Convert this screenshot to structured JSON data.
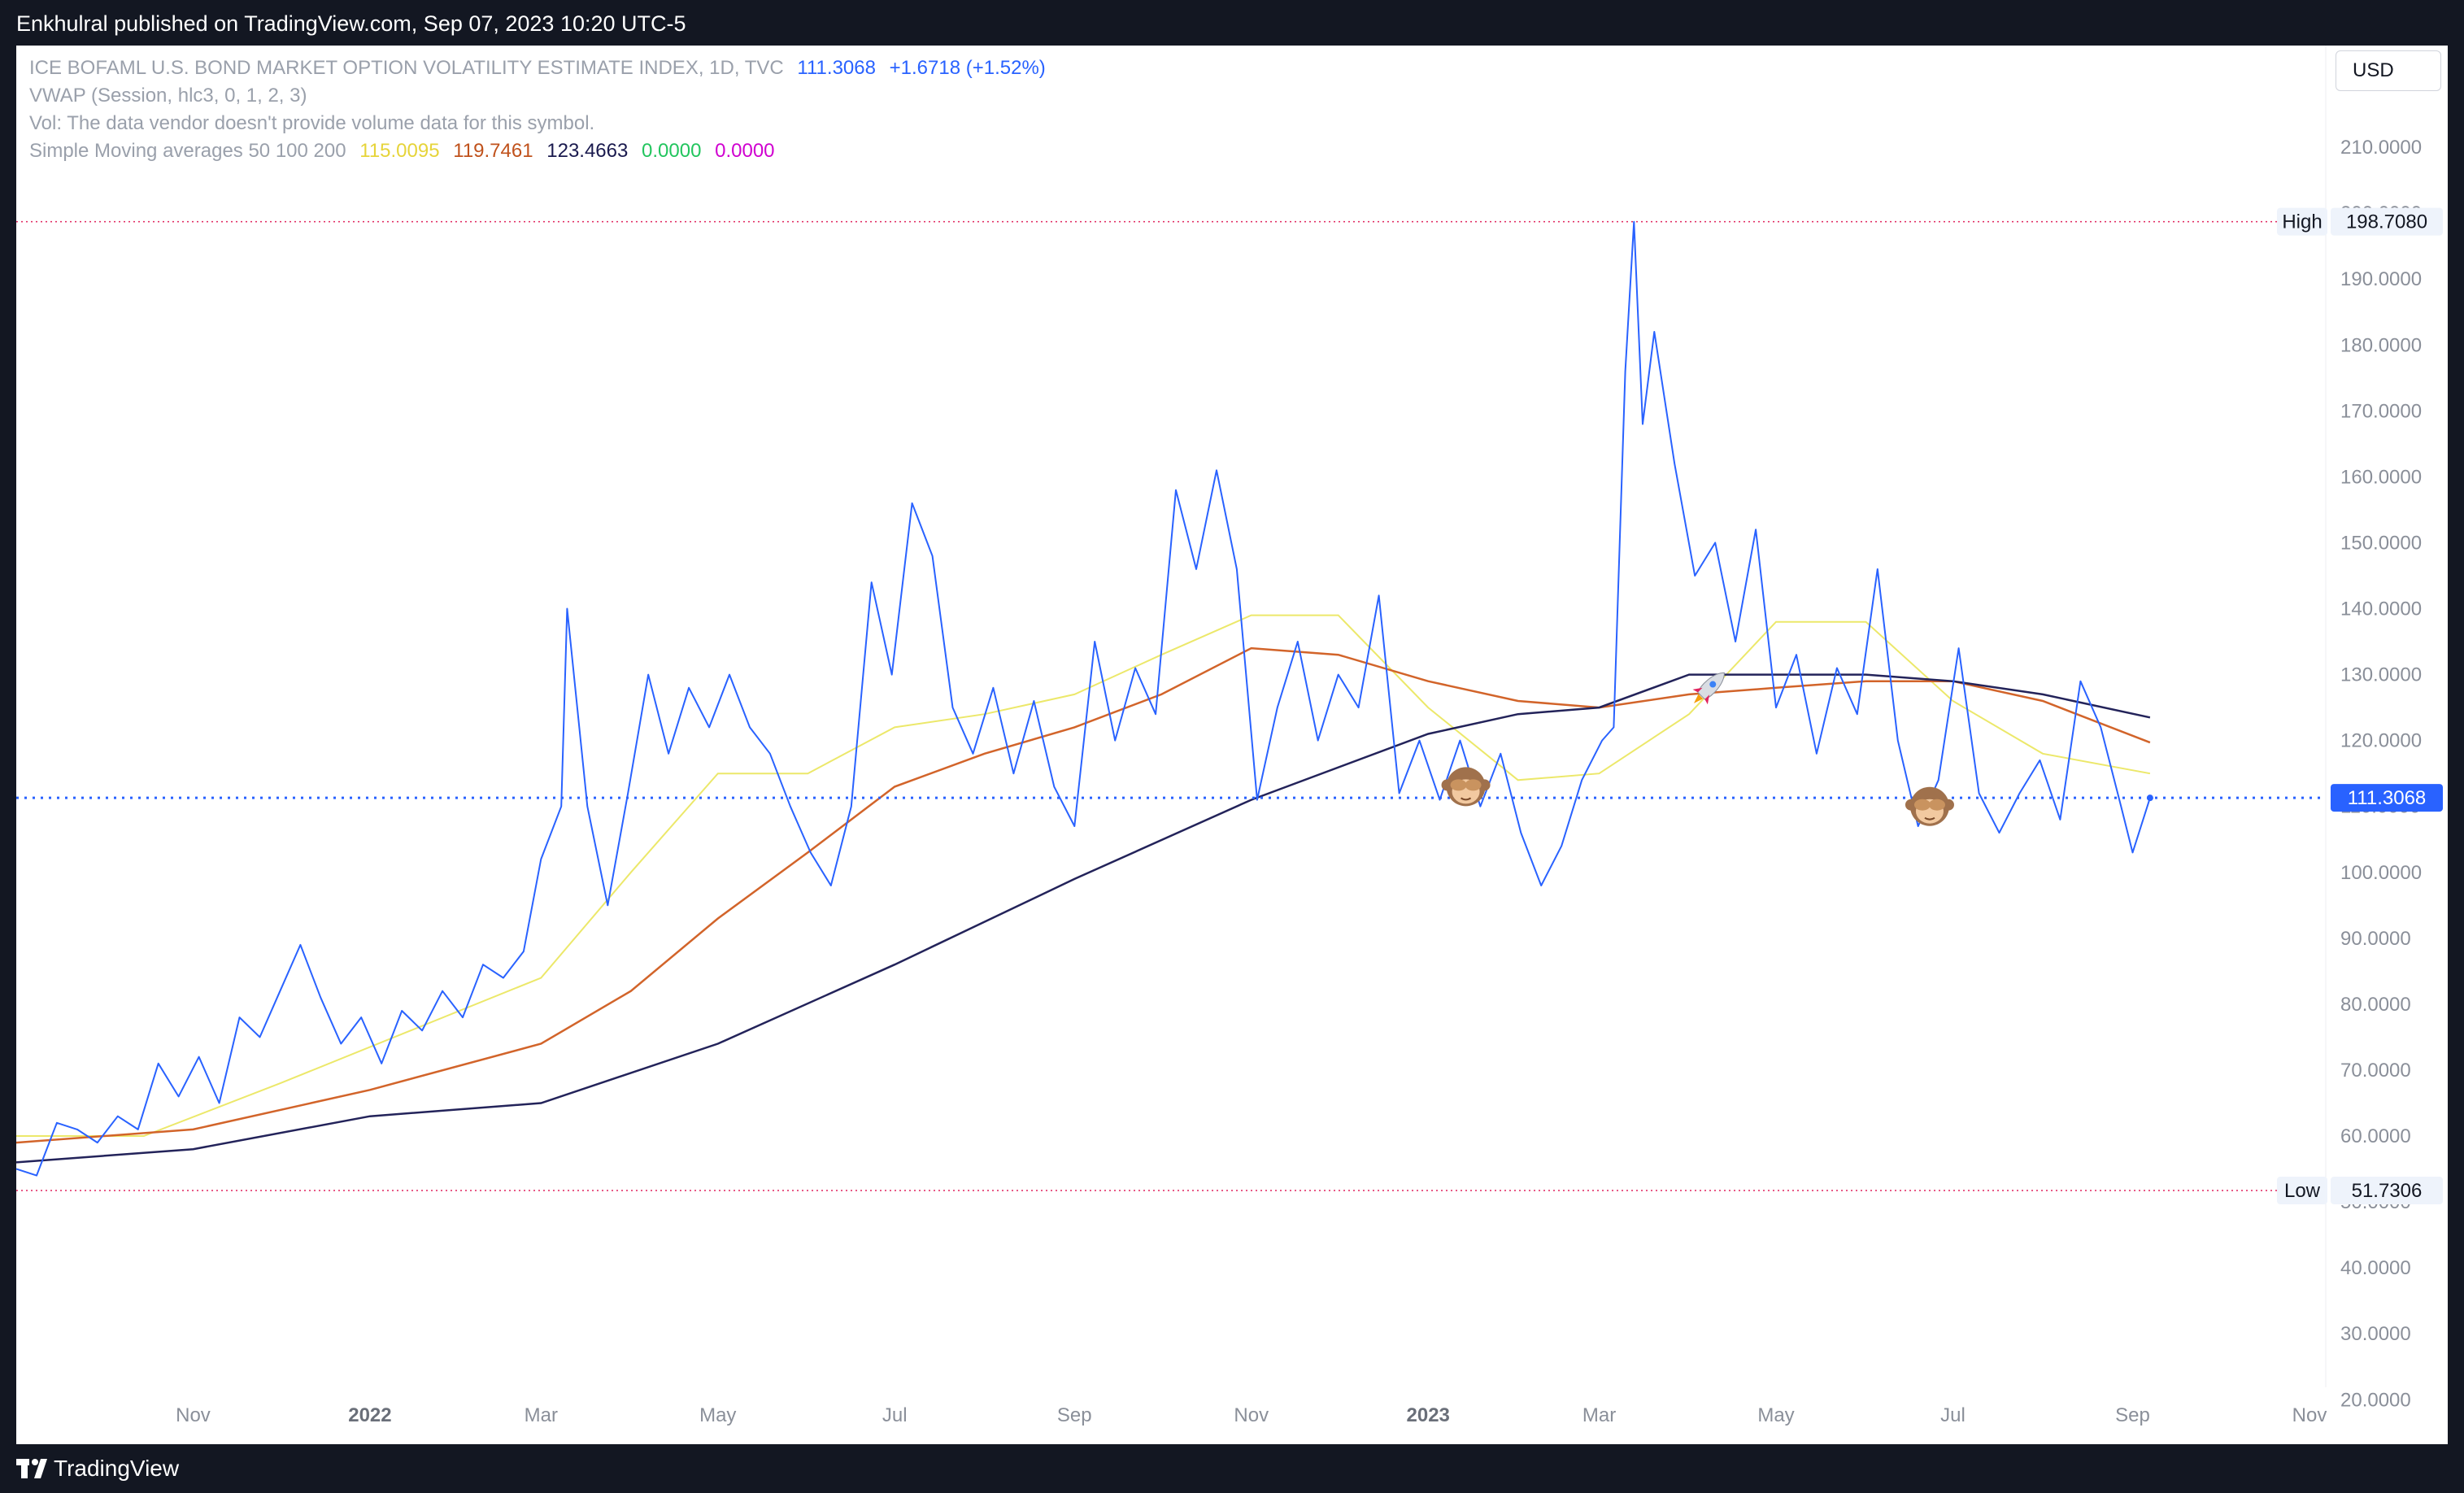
{
  "header": {
    "publisher": "Enkhulral published on TradingView.com, Sep 07, 2023 10:20 UTC-5"
  },
  "legend": {
    "symbol": "ICE BOFAML U.S. BOND MARKET OPTION VOLATILITY ESTIMATE INDEX, 1D, TVC",
    "price": "111.3068",
    "change": "+1.6718 (+1.52%)",
    "vwap": "VWAP (Session, hlc3, 0, 1, 2, 3)",
    "vol": "Vol: The data vendor doesn't provide volume data for this symbol.",
    "sma_label": "Simple Moving averages 50 100 200",
    "sma_values": [
      "115.0095",
      "119.7461",
      "123.4663",
      "0.0000",
      "0.0000"
    ],
    "sma_colors": [
      "#e6d43a",
      "#c0521c",
      "#1a1a4e",
      "#22c55e",
      "#d000d0"
    ]
  },
  "currency": "USD",
  "footer": {
    "brand": "TradingView"
  },
  "colors": {
    "price_line": "#2962ff",
    "sma50": "#ece86a",
    "sma100": "#d2642a",
    "sma200": "#23235a",
    "marker": "#e0245e"
  },
  "chart_data": {
    "type": "line",
    "title": "ICE BOFAML U.S. BOND MARKET OPTION VOLATILITY ESTIMATE INDEX",
    "ylim": [
      13,
      220
    ],
    "y_ticks": [
      "20.0000",
      "30.0000",
      "40.0000",
      "50.0000",
      "60.0000",
      "70.0000",
      "80.0000",
      "90.0000",
      "100.0000",
      "110.0000",
      "120.0000",
      "130.0000",
      "140.0000",
      "150.0000",
      "160.0000",
      "170.0000",
      "180.0000",
      "190.0000",
      "200.0000",
      "210.0000"
    ],
    "x_ticks": [
      {
        "label": "Nov",
        "date": "2021-11-01"
      },
      {
        "label": "2022",
        "date": "2022-01-01",
        "bold": true
      },
      {
        "label": "Mar",
        "date": "2022-03-01"
      },
      {
        "label": "May",
        "date": "2022-05-01"
      },
      {
        "label": "Jul",
        "date": "2022-07-01"
      },
      {
        "label": "Sep",
        "date": "2022-09-01"
      },
      {
        "label": "Nov",
        "date": "2022-11-01"
      },
      {
        "label": "2023",
        "date": "2023-01-01",
        "bold": true
      },
      {
        "label": "Mar",
        "date": "2023-03-01"
      },
      {
        "label": "May",
        "date": "2023-05-01"
      },
      {
        "label": "Jul",
        "date": "2023-07-01"
      },
      {
        "label": "Sep",
        "date": "2023-09-01"
      },
      {
        "label": "Nov",
        "date": "2023-11-01"
      }
    ],
    "high": {
      "label": "High",
      "value": 198.708,
      "text": "198.7080"
    },
    "low": {
      "label": "Low",
      "value": 51.7306,
      "text": "51.7306"
    },
    "last": {
      "value": 111.3068,
      "text": "111.3068"
    },
    "series": [
      {
        "name": "ICE BOFAML U.S. BOND MARKET OPTION VOLATILITY ESTIMATE INDEX",
        "points": [
          [
            "2021-09-01",
            55
          ],
          [
            "2021-09-08",
            54
          ],
          [
            "2021-09-15",
            62
          ],
          [
            "2021-09-22",
            61
          ],
          [
            "2021-09-29",
            59
          ],
          [
            "2021-10-06",
            63
          ],
          [
            "2021-10-13",
            61
          ],
          [
            "2021-10-20",
            71
          ],
          [
            "2021-10-27",
            66
          ],
          [
            "2021-11-03",
            72
          ],
          [
            "2021-11-10",
            65
          ],
          [
            "2021-11-17",
            78
          ],
          [
            "2021-11-24",
            75
          ],
          [
            "2021-12-01",
            82
          ],
          [
            "2021-12-08",
            89
          ],
          [
            "2021-12-15",
            81
          ],
          [
            "2021-12-22",
            74
          ],
          [
            "2021-12-29",
            78
          ],
          [
            "2022-01-05",
            71
          ],
          [
            "2022-01-12",
            79
          ],
          [
            "2022-01-19",
            76
          ],
          [
            "2022-01-26",
            82
          ],
          [
            "2022-02-02",
            78
          ],
          [
            "2022-02-09",
            86
          ],
          [
            "2022-02-16",
            84
          ],
          [
            "2022-02-23",
            88
          ],
          [
            "2022-03-01",
            102
          ],
          [
            "2022-03-08",
            110
          ],
          [
            "2022-03-10",
            140
          ],
          [
            "2022-03-17",
            110
          ],
          [
            "2022-03-24",
            95
          ],
          [
            "2022-03-31",
            112
          ],
          [
            "2022-04-07",
            130
          ],
          [
            "2022-04-14",
            118
          ],
          [
            "2022-04-21",
            128
          ],
          [
            "2022-04-28",
            122
          ],
          [
            "2022-05-05",
            130
          ],
          [
            "2022-05-12",
            122
          ],
          [
            "2022-05-19",
            118
          ],
          [
            "2022-05-26",
            110
          ],
          [
            "2022-06-02",
            103
          ],
          [
            "2022-06-09",
            98
          ],
          [
            "2022-06-16",
            110
          ],
          [
            "2022-06-23",
            144
          ],
          [
            "2022-06-30",
            130
          ],
          [
            "2022-07-07",
            156
          ],
          [
            "2022-07-14",
            148
          ],
          [
            "2022-07-21",
            125
          ],
          [
            "2022-07-28",
            118
          ],
          [
            "2022-08-04",
            128
          ],
          [
            "2022-08-11",
            115
          ],
          [
            "2022-08-18",
            126
          ],
          [
            "2022-08-25",
            113
          ],
          [
            "2022-09-01",
            107
          ],
          [
            "2022-09-08",
            135
          ],
          [
            "2022-09-15",
            120
          ],
          [
            "2022-09-22",
            131
          ],
          [
            "2022-09-29",
            124
          ],
          [
            "2022-10-06",
            158
          ],
          [
            "2022-10-13",
            146
          ],
          [
            "2022-10-20",
            161
          ],
          [
            "2022-10-27",
            146
          ],
          [
            "2022-11-03",
            111
          ],
          [
            "2022-11-10",
            125
          ],
          [
            "2022-11-17",
            135
          ],
          [
            "2022-11-24",
            120
          ],
          [
            "2022-12-01",
            130
          ],
          [
            "2022-12-08",
            125
          ],
          [
            "2022-12-15",
            142
          ],
          [
            "2022-12-22",
            112
          ],
          [
            "2022-12-29",
            120
          ],
          [
            "2023-01-05",
            111
          ],
          [
            "2023-01-12",
            120
          ],
          [
            "2023-01-19",
            110
          ],
          [
            "2023-01-26",
            118
          ],
          [
            "2023-02-02",
            106
          ],
          [
            "2023-02-09",
            98
          ],
          [
            "2023-02-16",
            104
          ],
          [
            "2023-02-23",
            114
          ],
          [
            "2023-03-02",
            120
          ],
          [
            "2023-03-06",
            122
          ],
          [
            "2023-03-10",
            176
          ],
          [
            "2023-03-13",
            198.7
          ],
          [
            "2023-03-16",
            168
          ],
          [
            "2023-03-20",
            182
          ],
          [
            "2023-03-27",
            162
          ],
          [
            "2023-04-03",
            145
          ],
          [
            "2023-04-10",
            150
          ],
          [
            "2023-04-17",
            135
          ],
          [
            "2023-04-24",
            152
          ],
          [
            "2023-05-01",
            125
          ],
          [
            "2023-05-08",
            133
          ],
          [
            "2023-05-15",
            118
          ],
          [
            "2023-05-22",
            131
          ],
          [
            "2023-05-29",
            124
          ],
          [
            "2023-06-05",
            146
          ],
          [
            "2023-06-12",
            120
          ],
          [
            "2023-06-19",
            107
          ],
          [
            "2023-06-26",
            114
          ],
          [
            "2023-07-03",
            134
          ],
          [
            "2023-07-10",
            112
          ],
          [
            "2023-07-17",
            106
          ],
          [
            "2023-07-24",
            112
          ],
          [
            "2023-07-31",
            117
          ],
          [
            "2023-08-07",
            108
          ],
          [
            "2023-08-14",
            129
          ],
          [
            "2023-08-21",
            122
          ],
          [
            "2023-08-28",
            110
          ],
          [
            "2023-09-01",
            103
          ],
          [
            "2023-09-07",
            111.3
          ]
        ]
      },
      {
        "name": "SMA 50",
        "points": [
          [
            "2021-09-01",
            60
          ],
          [
            "2021-10-15",
            60
          ],
          [
            "2021-12-01",
            68
          ],
          [
            "2022-01-15",
            76
          ],
          [
            "2022-03-01",
            84
          ],
          [
            "2022-04-01",
            100
          ],
          [
            "2022-05-01",
            115
          ],
          [
            "2022-06-01",
            115
          ],
          [
            "2022-07-01",
            122
          ],
          [
            "2022-08-01",
            124
          ],
          [
            "2022-09-01",
            127
          ],
          [
            "2022-10-01",
            133
          ],
          [
            "2022-11-01",
            139
          ],
          [
            "2022-12-01",
            139
          ],
          [
            "2023-01-01",
            125
          ],
          [
            "2023-02-01",
            114
          ],
          [
            "2023-03-01",
            115
          ],
          [
            "2023-04-01",
            124
          ],
          [
            "2023-05-01",
            138
          ],
          [
            "2023-06-01",
            138
          ],
          [
            "2023-07-01",
            126
          ],
          [
            "2023-08-01",
            118
          ],
          [
            "2023-09-07",
            115
          ]
        ]
      },
      {
        "name": "SMA 100",
        "points": [
          [
            "2021-09-01",
            59
          ],
          [
            "2021-11-01",
            61
          ],
          [
            "2022-01-01",
            67
          ],
          [
            "2022-03-01",
            74
          ],
          [
            "2022-04-01",
            82
          ],
          [
            "2022-05-01",
            93
          ],
          [
            "2022-06-01",
            103
          ],
          [
            "2022-07-01",
            113
          ],
          [
            "2022-08-01",
            118
          ],
          [
            "2022-09-01",
            122
          ],
          [
            "2022-10-01",
            127
          ],
          [
            "2022-11-01",
            134
          ],
          [
            "2022-12-01",
            133
          ],
          [
            "2023-01-01",
            129
          ],
          [
            "2023-02-01",
            126
          ],
          [
            "2023-03-01",
            125
          ],
          [
            "2023-04-01",
            127
          ],
          [
            "2023-05-01",
            128
          ],
          [
            "2023-06-01",
            129
          ],
          [
            "2023-07-01",
            129
          ],
          [
            "2023-08-01",
            126
          ],
          [
            "2023-09-07",
            119.7
          ]
        ]
      },
      {
        "name": "SMA 200",
        "points": [
          [
            "2021-09-01",
            56
          ],
          [
            "2021-11-01",
            58
          ],
          [
            "2022-01-01",
            63
          ],
          [
            "2022-03-01",
            65
          ],
          [
            "2022-05-01",
            74
          ],
          [
            "2022-07-01",
            86
          ],
          [
            "2022-09-01",
            99
          ],
          [
            "2022-11-01",
            111
          ],
          [
            "2023-01-01",
            121
          ],
          [
            "2023-02-01",
            124
          ],
          [
            "2023-03-01",
            125
          ],
          [
            "2023-04-01",
            130
          ],
          [
            "2023-05-01",
            130
          ],
          [
            "2023-06-01",
            130
          ],
          [
            "2023-07-01",
            129
          ],
          [
            "2023-08-01",
            127
          ],
          [
            "2023-09-07",
            123.5
          ]
        ]
      }
    ],
    "markers": [
      {
        "icon": "see-no-evil-monkey",
        "date": "2023-01-14",
        "value": 113
      },
      {
        "icon": "rocket",
        "date": "2023-04-08",
        "value": 128
      },
      {
        "icon": "see-no-evil-monkey",
        "date": "2023-06-23",
        "value": 110
      }
    ]
  }
}
